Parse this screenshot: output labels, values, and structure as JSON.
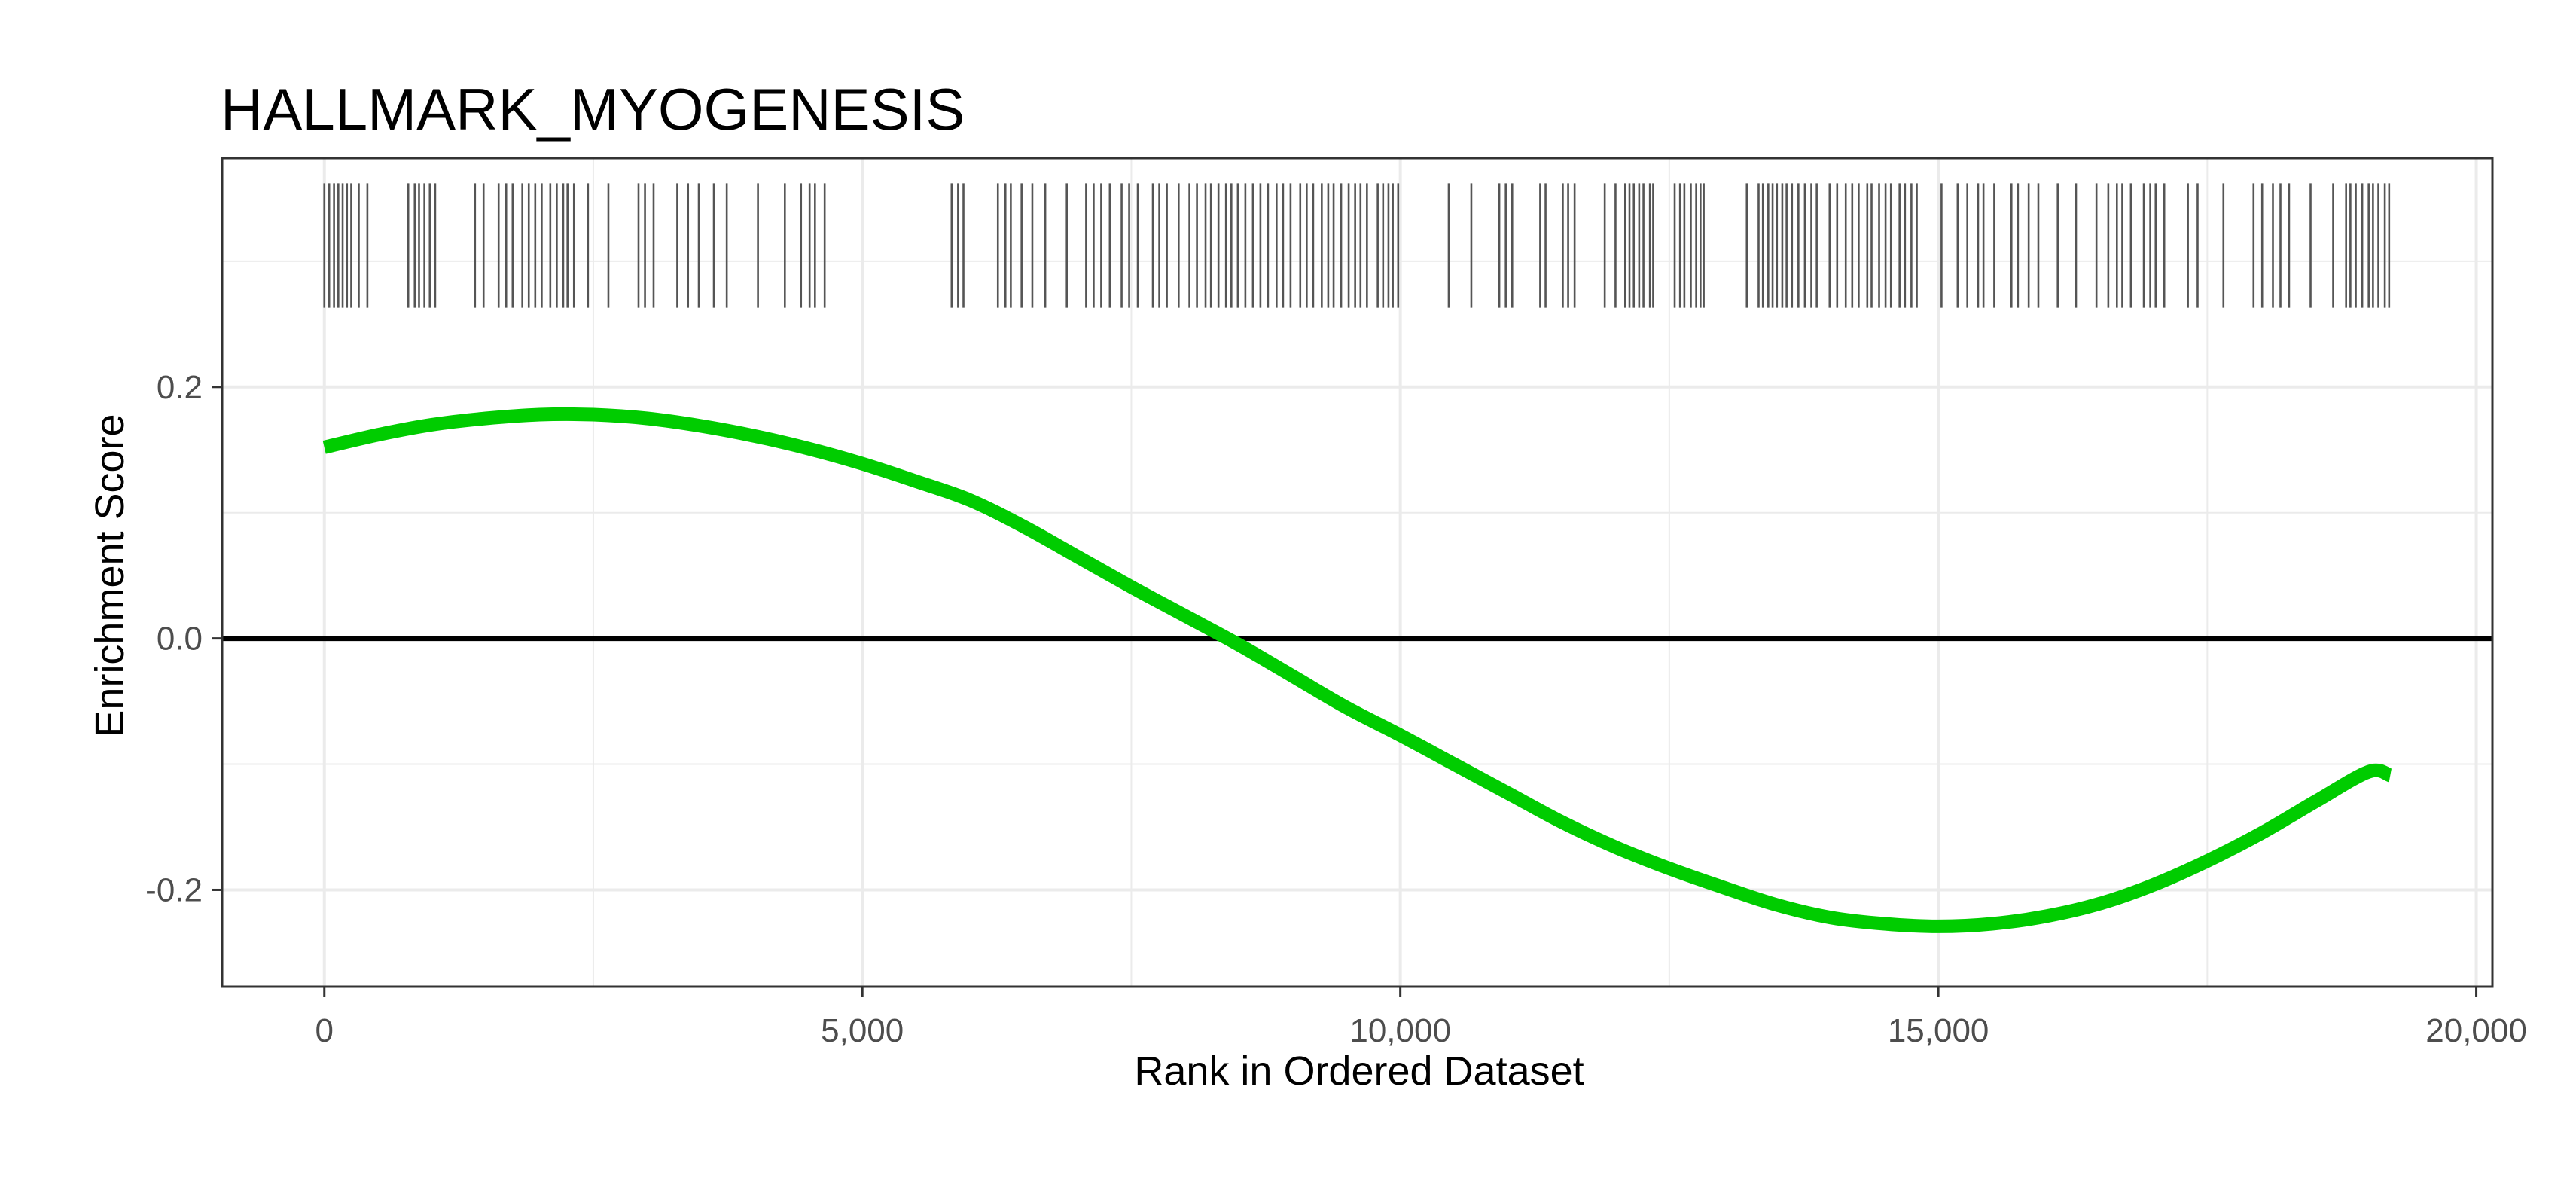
{
  "chart_data": {
    "type": "line",
    "title": "HALLMARK_MYOGENESIS",
    "xlabel": "Rank in Ordered Dataset",
    "ylabel": "Enrichment Score",
    "xlim": [
      -950,
      20150
    ],
    "ylim": [
      -0.277,
      0.382
    ],
    "x_ticks": [
      0,
      5000,
      10000,
      15000,
      20000
    ],
    "x_tick_labels": [
      "0",
      "5,000",
      "10,000",
      "15,000",
      "20,000"
    ],
    "y_ticks": [
      -0.2,
      0.0,
      0.2
    ],
    "y_tick_labels": [
      "-0.2",
      "0.0",
      "0.2"
    ],
    "grid": true,
    "zero_line": true,
    "colors": {
      "curve": "#00CC00",
      "hits": "#555555",
      "zero_line": "#000000",
      "grid": "#EBEBEB",
      "panel_border": "#333333"
    },
    "series": [
      {
        "x": [
          0,
          500,
          1000,
          1500,
          2000,
          2500,
          3000,
          3500,
          4000,
          4500,
          5000,
          5500,
          6000,
          6500,
          7000,
          7500,
          8000,
          8500,
          9000,
          9500,
          10000,
          10500,
          11000,
          11500,
          12000,
          12500,
          13000,
          13500,
          14000,
          14500,
          15000,
          15500,
          16000,
          16500,
          17000,
          17500,
          18000,
          18500,
          19000,
          19200
        ],
        "values": [
          0.152,
          0.162,
          0.17,
          0.175,
          0.178,
          0.178,
          0.175,
          0.169,
          0.161,
          0.151,
          0.139,
          0.125,
          0.11,
          0.089,
          0.065,
          0.041,
          0.018,
          -0.005,
          -0.03,
          -0.055,
          -0.077,
          -0.1,
          -0.123,
          -0.146,
          -0.166,
          -0.183,
          -0.198,
          -0.212,
          -0.222,
          -0.227,
          -0.229,
          -0.227,
          -0.221,
          -0.211,
          -0.196,
          -0.177,
          -0.155,
          -0.13,
          -0.106,
          -0.109
        ]
      }
    ],
    "gene_hits": [
      0,
      45,
      90,
      130,
      170,
      210,
      250,
      320,
      400,
      780,
      840,
      880,
      930,
      980,
      1030,
      1400,
      1480,
      1620,
      1690,
      1750,
      1840,
      1900,
      1960,
      2020,
      2100,
      2160,
      2220,
      2260,
      2320,
      2450,
      2640,
      2920,
      2980,
      3060,
      3280,
      3380,
      3480,
      3620,
      3740,
      4030,
      4280,
      4430,
      4510,
      4560,
      4650,
      5830,
      5890,
      5940,
      6260,
      6330,
      6380,
      6480,
      6580,
      6700,
      6900,
      7080,
      7150,
      7220,
      7300,
      7410,
      7480,
      7560,
      7700,
      7760,
      7830,
      7940,
      8040,
      8110,
      8190,
      8240,
      8310,
      8380,
      8430,
      8490,
      8560,
      8630,
      8700,
      8770,
      8850,
      8910,
      8980,
      9070,
      9130,
      9190,
      9270,
      9330,
      9380,
      9450,
      9520,
      9580,
      9630,
      9690,
      9790,
      9840,
      9890,
      9930,
      9980,
      10450,
      10660,
      10920,
      10980,
      11040,
      11300,
      11350,
      11510,
      11560,
      11620,
      11900,
      12000,
      12090,
      12130,
      12170,
      12220,
      12260,
      12320,
      12350,
      12550,
      12600,
      12640,
      12700,
      12750,
      12790,
      12820,
      13220,
      13330,
      13370,
      13420,
      13460,
      13500,
      13550,
      13590,
      13640,
      13700,
      13760,
      13820,
      13870,
      13990,
      14060,
      14140,
      14200,
      14260,
      14340,
      14380,
      14450,
      14510,
      14560,
      14640,
      14690,
      14750,
      14800,
      15030,
      15180,
      15270,
      15370,
      15420,
      15520,
      15680,
      15740,
      15840,
      15930,
      16110,
      16280,
      16470,
      16580,
      16660,
      16710,
      16790,
      16910,
      16970,
      17020,
      17100,
      17320,
      17410,
      17650,
      17930,
      18010,
      18110,
      18180,
      18260,
      18460,
      18670,
      18790,
      18830,
      18880,
      18940,
      19000,
      19040,
      19090,
      19150,
      19190
    ]
  }
}
